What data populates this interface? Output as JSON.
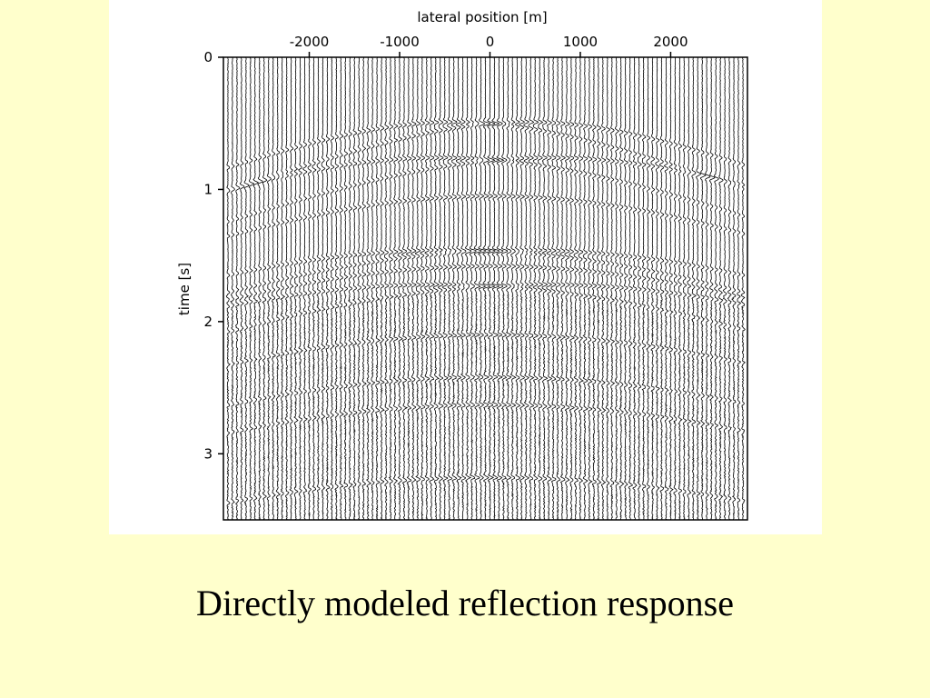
{
  "slide": {
    "caption": "Directly modeled reflection response",
    "background_color": "#ffffcc"
  },
  "chart_data": {
    "type": "heatmap",
    "description_kind": "seismic wiggle-trace section (shot gather)",
    "xlabel": "lateral position [m]",
    "ylabel": "time [s]",
    "xlim": [
      -2950,
      2850
    ],
    "ylim": [
      0,
      3.5
    ],
    "x_axis_position": "top",
    "y_inverted": true,
    "x_ticks": [
      -2000,
      -1000,
      0,
      1000,
      2000
    ],
    "x_tick_labels": [
      "-2000",
      "-1000",
      "0",
      "1000",
      "2000"
    ],
    "y_ticks": [
      0,
      1,
      2,
      3
    ],
    "y_tick_labels": [
      "0",
      "1",
      "2",
      "3"
    ],
    "trace_spacing_m": 50,
    "grid": false,
    "events": [
      {
        "apex_x": -400,
        "t0": 0.49,
        "velocity": 3700
      },
      {
        "apex_x": 400,
        "t0": 0.49,
        "velocity": 3700
      },
      {
        "apex_x": -550,
        "t0": 0.76,
        "velocity": 3600
      },
      {
        "apex_x": 650,
        "t0": 0.76,
        "velocity": 3600
      },
      {
        "apex_x": 0,
        "t0": 1.05,
        "velocity": 3400
      },
      {
        "apex_x": -450,
        "t0": 1.46,
        "velocity": 3200
      },
      {
        "apex_x": 350,
        "t0": 1.46,
        "velocity": 3200
      },
      {
        "apex_x": 0,
        "t0": 1.58,
        "velocity": 3100
      },
      {
        "apex_x": -600,
        "t0": 1.72,
        "velocity": 3000
      },
      {
        "apex_x": 600,
        "t0": 1.72,
        "velocity": 3000
      },
      {
        "apex_x": 0,
        "t0": 2.1,
        "velocity": 2900
      },
      {
        "apex_x": 0,
        "t0": 2.42,
        "velocity": 2800
      },
      {
        "apex_x": 0,
        "t0": 2.63,
        "velocity": 2700
      },
      {
        "apex_x": 0,
        "t0": 3.18,
        "velocity": 2600
      }
    ]
  }
}
